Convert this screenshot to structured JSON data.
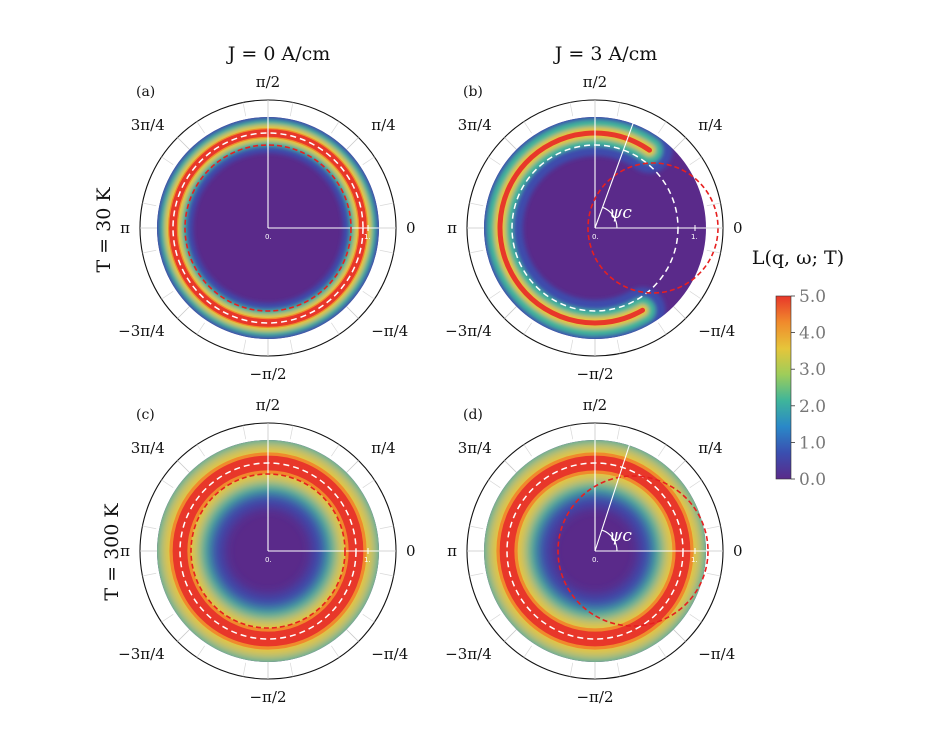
{
  "columns": [
    "J = 0 A/cm",
    "J = 3 A/cm"
  ],
  "rows": [
    "T = 30 K",
    "T = 300 K"
  ],
  "colorbar": {
    "title": "L(q, ω; T)",
    "ticks": [
      "5.0",
      "4.0",
      "3.0",
      "2.0",
      "1.0",
      "0.0"
    ],
    "stops": [
      "#e8372a",
      "#f08a2c",
      "#e6c53a",
      "#9ecd5a",
      "#3fb59a",
      "#2a88c8",
      "#3a4fb0",
      "#5a2a8a"
    ],
    "low_color": "#5a2a8a"
  },
  "angle_labels": {
    "top": "π/2",
    "top_right": "π/4",
    "right": "0",
    "bottom_right": "−π/4",
    "bottom": "−π/2",
    "bottom_left": "−3π/4",
    "left": "π",
    "top_left": "3π/4"
  },
  "radial_tick_labels": [
    "0.",
    "1."
  ],
  "angle_marker": "ψc",
  "chart_data": [
    {
      "type": "heatmap",
      "panel": "(a)",
      "current_density": "J = 0 A/cm",
      "temperature": "T = 30 K",
      "peak_ring": {
        "center_x": 0.0,
        "radius": 0.95,
        "peak_value": 5.0,
        "width": 0.05
      },
      "white_dashed": {
        "center_x": 0.0,
        "radius": 0.95
      },
      "red_dashed": {
        "center_x": 0.0,
        "radius": 0.83
      },
      "psi_c_deg": null
    },
    {
      "type": "heatmap",
      "panel": "(b)",
      "current_density": "J = 3 A/cm",
      "temperature": "T = 30 K",
      "peak_ring": {
        "center_x": 0.0,
        "radius": 0.95,
        "peak_value": 5.0,
        "width": 0.05,
        "visible_arc_deg": [
          55,
          300
        ]
      },
      "white_dashed": {
        "center_x": 0.0,
        "radius": 0.83
      },
      "red_dashed": {
        "center_x": 0.58,
        "radius": 0.65
      },
      "psi_c_deg": 70
    },
    {
      "type": "heatmap",
      "panel": "(c)",
      "current_density": "J = 0 A/cm",
      "temperature": "T = 300 K",
      "peak_ring": {
        "center_x": 0.0,
        "radius": 0.88,
        "peak_value": 5.0,
        "width": 0.13
      },
      "white_dashed": {
        "center_x": 0.0,
        "radius": 0.88
      },
      "red_dashed": {
        "center_x": 0.0,
        "radius": 0.77
      },
      "psi_c_deg": null
    },
    {
      "type": "heatmap",
      "panel": "(d)",
      "current_density": "J = 3 A/cm",
      "temperature": "T = 300 K",
      "peak_ring": {
        "center_x": 0.0,
        "radius": 0.88,
        "peak_value": 5.0,
        "width": 0.13
      },
      "white_dashed": {
        "center_x": 0.0,
        "radius": 0.88
      },
      "red_dashed": {
        "center_x": 0.38,
        "radius": 0.75
      },
      "psi_c_deg": 72
    }
  ]
}
